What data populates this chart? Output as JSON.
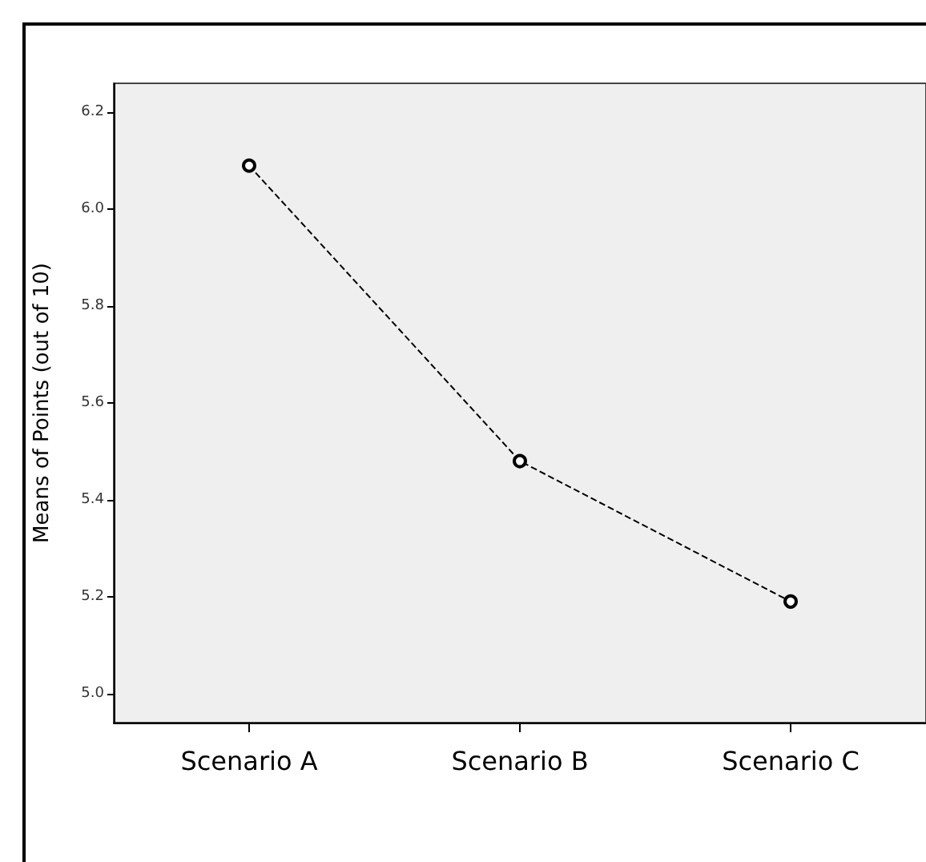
{
  "chart_data": {
    "type": "line",
    "ylabel": "Means of Points (out of 10)",
    "categories": [
      "Scenario A",
      "Scenario B",
      "Scenario C"
    ],
    "series": [
      {
        "color": "#000000",
        "values": [
          6.09,
          5.48,
          5.19
        ]
      }
    ],
    "ylim": [
      4.94,
      6.26
    ],
    "yticks": [
      {
        "value": 5.0,
        "label": "5.0"
      },
      {
        "value": 5.2,
        "label": "5.2"
      },
      {
        "value": 5.4,
        "label": "5.4"
      },
      {
        "value": 5.6,
        "label": "5.6"
      },
      {
        "value": 5.8,
        "label": "5.8"
      },
      {
        "value": 6.0,
        "label": "6.0"
      },
      {
        "value": 6.2,
        "label": "6.2"
      }
    ],
    "grid": false,
    "marker": "circle",
    "line_style": "dashed"
  }
}
